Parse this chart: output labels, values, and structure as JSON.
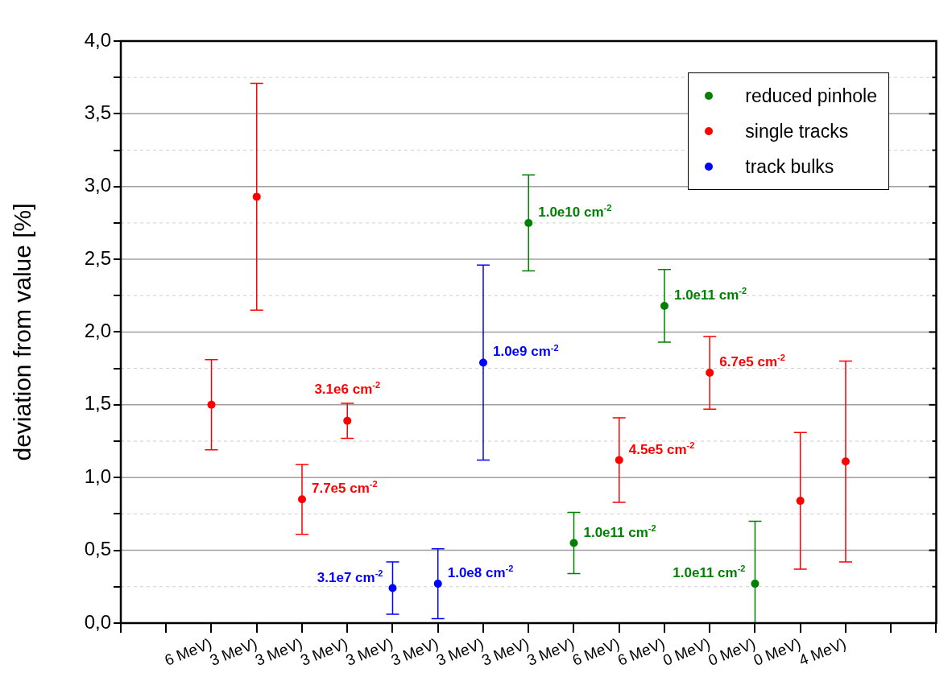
{
  "chart_data": {
    "type": "scatter",
    "ylabel": "deviation from value [%]",
    "categories": [
      null,
      null,
      "6 MeV)",
      "3 MeV)",
      "3 MeV)",
      "3 MeV)",
      "3 MeV)",
      "3 MeV)",
      "3 MeV)",
      "3 MeV)",
      "3 MeV)",
      "6 MeV)",
      "6 MeV)",
      "0 MeV)",
      "0 MeV)",
      "0 MeV)",
      "4 MeV)",
      null,
      null
    ],
    "series": [
      {
        "name": "reduced pinhole",
        "color": "#008000",
        "values": [
          null,
          null,
          null,
          null,
          null,
          null,
          null,
          null,
          null,
          2.75,
          0.55,
          null,
          2.18,
          null,
          0.27,
          null,
          null,
          null,
          null
        ],
        "errors": [
          null,
          null,
          null,
          null,
          null,
          null,
          null,
          null,
          null,
          [
            2.42,
            3.08
          ],
          [
            0.34,
            0.76
          ],
          null,
          [
            1.93,
            2.43
          ],
          null,
          [
            0,
            0.7
          ],
          null,
          null,
          null,
          null
        ],
        "value_labels": [
          null,
          null,
          null,
          null,
          null,
          null,
          null,
          null,
          null,
          "1.0e10 cm$^{-2}$",
          "1.0e11 cm$^{-2}$",
          null,
          "1.0e11 cm$^{-2}$",
          null,
          "1.0e11 cm$^{-2}$",
          null,
          null,
          null,
          null
        ]
      },
      {
        "name": "single tracks",
        "color": "#ff0000",
        "values": [
          null,
          null,
          1.5,
          2.93,
          0.85,
          1.39,
          null,
          null,
          null,
          null,
          null,
          1.12,
          null,
          1.72,
          null,
          0.84,
          1.11,
          null,
          null
        ],
        "errors": [
          null,
          null,
          [
            1.19,
            1.81
          ],
          [
            2.15,
            3.71
          ],
          [
            0.61,
            1.09
          ],
          [
            1.27,
            1.51
          ],
          null,
          null,
          null,
          null,
          null,
          [
            0.83,
            1.41
          ],
          null,
          [
            1.47,
            1.97
          ],
          null,
          [
            0.37,
            1.31
          ],
          [
            0.42,
            1.8
          ],
          null,
          null
        ],
        "value_labels": [
          null,
          null,
          null,
          null,
          "7.7e5 cm$^{-2}$",
          "3.1e6 cm$^{-2}$",
          null,
          null,
          null,
          null,
          null,
          "4.5e5 cm$^{-2}$",
          null,
          "6.7e5 cm$^{-2}$",
          null,
          null,
          null,
          null,
          null
        ]
      },
      {
        "name": "track bulks",
        "color": "#0000ff",
        "values": [
          null,
          null,
          null,
          null,
          null,
          null,
          0.24,
          0.27,
          1.79,
          null,
          null,
          null,
          null,
          null,
          null,
          null,
          null,
          null,
          null
        ],
        "errors": [
          null,
          null,
          null,
          null,
          null,
          null,
          [
            0.06,
            0.42
          ],
          [
            0.03,
            0.51
          ],
          [
            1.12,
            2.46
          ],
          null,
          null,
          null,
          null,
          null,
          null,
          null,
          null,
          null,
          null
        ],
        "value_labels": [
          null,
          null,
          null,
          null,
          null,
          null,
          "3.1e7 cm$^{-2}$",
          "1.0e8 cm$^{-2}$",
          "1.0e9 cm$^{-2}$",
          null,
          null,
          null,
          null,
          null,
          null,
          null,
          null,
          null,
          null
        ]
      }
    ],
    "ylim": [
      0,
      4
    ],
    "yticks": [
      {
        "value": 0,
        "label": "0,0"
      },
      {
        "value": 0.25,
        "label": null
      },
      {
        "value": 0.5,
        "label": "0,5"
      },
      {
        "value": 0.75,
        "label": null
      },
      {
        "value": 1,
        "label": "1,0"
      },
      {
        "value": 1.25,
        "label": null
      },
      {
        "value": 1.5,
        "label": "1,5"
      },
      {
        "value": 1.75,
        "label": null
      },
      {
        "value": 2,
        "label": "2,0"
      },
      {
        "value": 2.25,
        "label": null
      },
      {
        "value": 2.5,
        "label": "2,5"
      },
      {
        "value": 2.75,
        "label": null
      },
      {
        "value": 3,
        "label": "3,0"
      },
      {
        "value": 3.25,
        "label": null
      },
      {
        "value": 3.5,
        "label": "3,5"
      },
      {
        "value": 3.75,
        "label": null
      },
      {
        "value": 4,
        "label": "4,0"
      }
    ],
    "grid": "y",
    "legend": "top right",
    "marker": "circle"
  }
}
